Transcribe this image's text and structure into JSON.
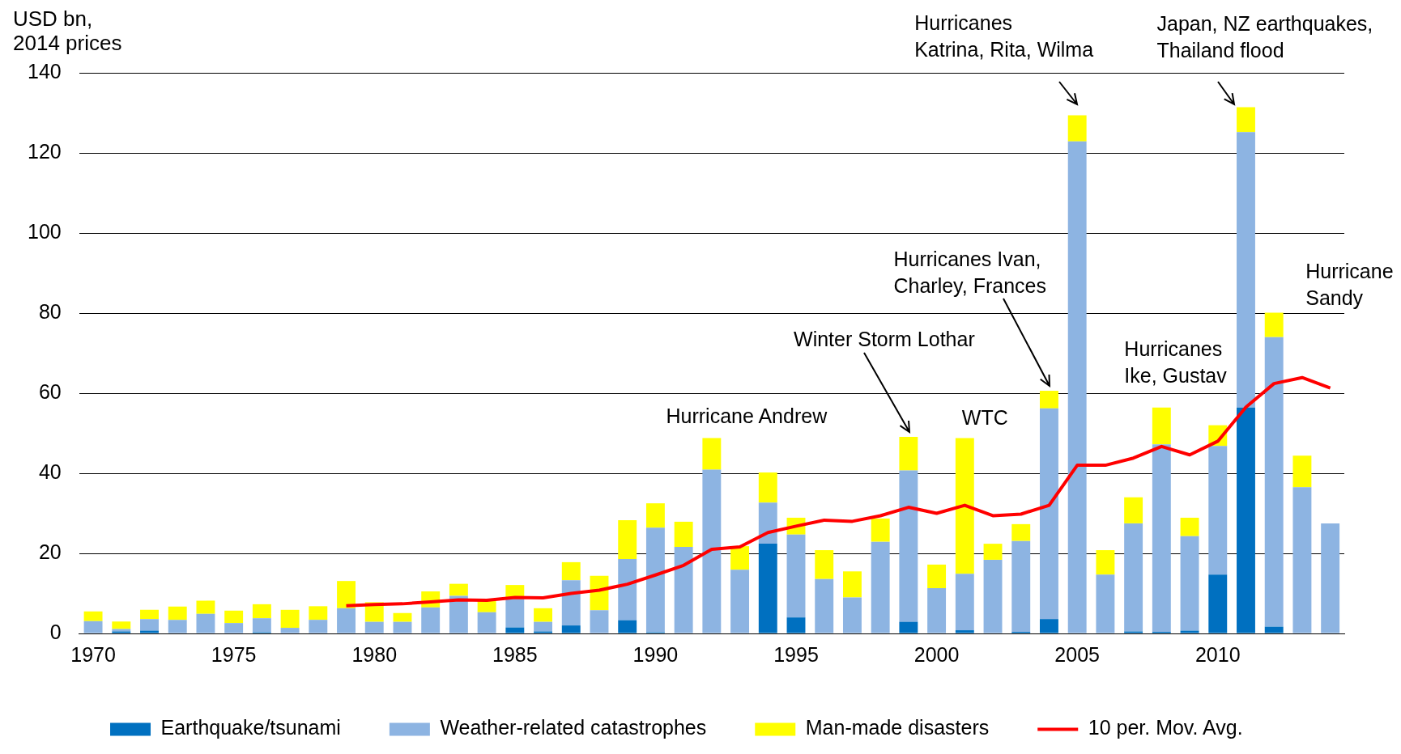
{
  "chart_data": {
    "type": "bar",
    "stacked": true,
    "ylabel": "USD bn, 2014 prices",
    "x": [
      1970,
      1971,
      1972,
      1973,
      1974,
      1975,
      1976,
      1977,
      1978,
      1979,
      1980,
      1981,
      1982,
      1983,
      1984,
      1985,
      1986,
      1987,
      1988,
      1989,
      1990,
      1991,
      1992,
      1993,
      1994,
      1995,
      1996,
      1997,
      1998,
      1999,
      2000,
      2001,
      2002,
      2003,
      2004,
      2005,
      2006,
      2007,
      2008,
      2009,
      2010,
      2011,
      2012,
      2013,
      2014
    ],
    "xlim": [
      1969.5,
      2014.5
    ],
    "xticks": [
      1970,
      1975,
      1980,
      1985,
      1990,
      1995,
      2000,
      2005,
      2010
    ],
    "ylim": [
      0,
      140
    ],
    "yticks": [
      0,
      20,
      40,
      60,
      80,
      100,
      120,
      140
    ],
    "grid": "y",
    "legend": "bottom",
    "series": [
      {
        "name": "Earthquake/tsunami",
        "color": "#0070c0",
        "values": [
          0,
          0.5,
          0.7,
          0,
          0,
          0,
          0.3,
          0,
          0,
          0,
          0,
          0,
          0,
          0,
          0,
          1.5,
          0.5,
          2.0,
          0,
          3.3,
          0.3,
          0,
          0,
          0,
          22.4,
          4.0,
          0,
          0,
          0,
          2.9,
          0,
          0.8,
          0,
          0.4,
          3.6,
          null,
          0,
          0.5,
          0.4,
          0.7,
          14.7,
          56.4,
          1.7,
          0,
          0
        ]
      },
      {
        "name": "Weather-related catastrophes",
        "color": "#8db4e2",
        "values": [
          3.1,
          0.6,
          2.9,
          3.4,
          4.9,
          2.6,
          3.5,
          1.4,
          3.4,
          6.3,
          2.9,
          2.9,
          6.5,
          9.4,
          5.3,
          7.1,
          2.4,
          11.3,
          5.8,
          15.3,
          26.1,
          21.6,
          40.9,
          15.9,
          10.3,
          20.7,
          13.6,
          9.0,
          22.9,
          37.8,
          11.3,
          14.1,
          18.4,
          22.7,
          52.6,
          122.9,
          14.7,
          27.0,
          46.8,
          23.6,
          32.1,
          68.8,
          72.3,
          36.5,
          27.5
        ]
      },
      {
        "name": "Man-made disasters",
        "color": "#ffff00",
        "values": [
          2.4,
          1.9,
          2.3,
          3.3,
          3.3,
          3.1,
          3.5,
          4.5,
          3.4,
          6.8,
          4.9,
          2.2,
          4.0,
          3.0,
          2.9,
          3.5,
          3.4,
          4.5,
          8.6,
          9.7,
          6.1,
          6.3,
          7.9,
          5.9,
          7.5,
          4.2,
          7.2,
          6.5,
          5.8,
          8.4,
          5.9,
          33.9,
          4.0,
          4.2,
          4.4,
          6.5,
          6.1,
          6.5,
          9.2,
          4.6,
          5.2,
          6.2,
          6.1,
          7.9,
          0
        ]
      },
      {
        "name": "10 per. Mov. Avg.",
        "type": "line",
        "color": "#ff0000",
        "x": [
          1979,
          1980,
          1981,
          1982,
          1983,
          1984,
          1985,
          1986,
          1987,
          1988,
          1989,
          1990,
          1991,
          1992,
          1993,
          1994,
          1995,
          1996,
          1997,
          1998,
          1999,
          2000,
          2001,
          2002,
          2003,
          2004,
          2005,
          2006,
          2007,
          2008,
          2009,
          2010,
          2011,
          2012,
          2013,
          2014
        ],
        "values": [
          6.9,
          7.2,
          7.4,
          7.9,
          8.4,
          8.3,
          9.0,
          8.9,
          10.0,
          10.8,
          12.3,
          14.6,
          17.0,
          21.0,
          21.6,
          25.2,
          26.8,
          28.3,
          28.0,
          29.4,
          31.5,
          30.0,
          32.0,
          29.4,
          29.8,
          32.0,
          42.0,
          42.0,
          43.8,
          46.7,
          44.6,
          48.0,
          56.5,
          62.4,
          63.9,
          61.3
        ]
      }
    ],
    "annotations": [
      {
        "text": "Hurricane Andrew",
        "x": 1992,
        "y": 48.8
      },
      {
        "text": "Winter Storm Lothar",
        "x": 1999,
        "y": 49.1
      },
      {
        "text": "WTC",
        "x": 2001,
        "y": 48.8
      },
      {
        "text": "Hurricanes Ivan,\nCharley, Frances",
        "x": 2004,
        "y": 60.6
      },
      {
        "text": "Hurricanes\nKatrina, Rita, Wilma",
        "x": 2005,
        "y": 129.6
      },
      {
        "text": "Hurricanes\nIke, Gustav",
        "x": 2008,
        "y": 56.4
      },
      {
        "text": "Japan, NZ earthquakes,\nThailand flood",
        "x": 2011,
        "y": 131.4
      },
      {
        "text": "Hurricane\nSandy",
        "x": 2012,
        "y": 80.1
      }
    ]
  }
}
